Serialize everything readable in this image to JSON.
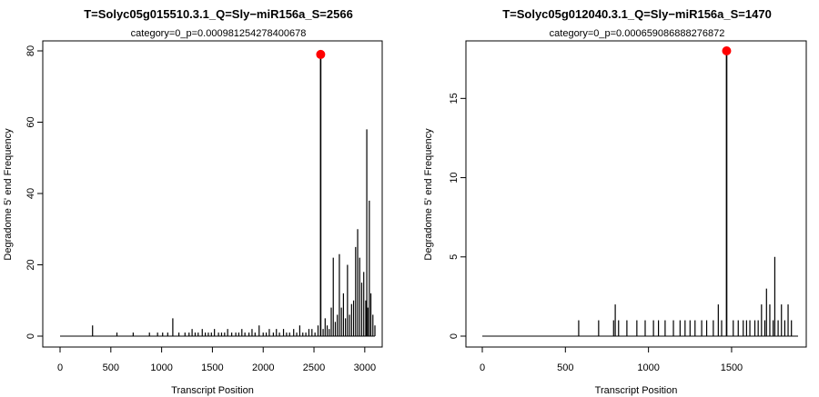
{
  "chart_data": [
    {
      "type": "bar",
      "title": "T=Solyc05g015510.3.1_Q=Sly−miR156a_S=2566",
      "subtitle": "category=0_p=0.000981254278400678",
      "xlabel": "Transcript Position",
      "ylabel": "Degradome 5' end Frequency",
      "xlim": [
        0,
        3100
      ],
      "ylim": [
        0,
        80
      ],
      "xticks": [
        "0",
        "500",
        "1000",
        "1500",
        "2000",
        "2500",
        "3000"
      ],
      "yticks": [
        "0",
        "20",
        "40",
        "60",
        "80"
      ],
      "highlight": {
        "x": 2566,
        "y": 79,
        "color": "#ff0000"
      },
      "series": [
        {
          "x": [
            320,
            560,
            720,
            880,
            960,
            1010,
            1060,
            1110,
            1170,
            1230,
            1270,
            1300,
            1330,
            1360,
            1400,
            1430,
            1460,
            1490,
            1520,
            1560,
            1590,
            1620,
            1650,
            1690,
            1730,
            1760,
            1790,
            1820,
            1860,
            1890,
            1920,
            1960,
            2000,
            2030,
            2060,
            2100,
            2130,
            2160,
            2200,
            2230,
            2260,
            2300,
            2330,
            2360,
            2390,
            2420,
            2450,
            2480,
            2510,
            2540,
            2566,
            2590,
            2610,
            2630,
            2650,
            2670,
            2690,
            2710,
            2730,
            2750,
            2770,
            2790,
            2810,
            2830,
            2850,
            2870,
            2890,
            2910,
            2930,
            2950,
            2970,
            2990,
            3010,
            3020,
            3030,
            3045,
            3060,
            3080,
            3100
          ],
          "values": [
            3,
            1,
            1,
            1,
            1,
            1,
            1,
            5,
            1,
            1,
            1,
            2,
            1,
            1,
            2,
            1,
            1,
            1,
            2,
            1,
            1,
            1,
            2,
            1,
            1,
            1,
            2,
            1,
            1,
            2,
            1,
            3,
            1,
            1,
            2,
            1,
            2,
            1,
            2,
            1,
            1,
            2,
            1,
            3,
            1,
            1,
            2,
            2,
            1,
            3,
            79,
            2,
            5,
            3,
            2,
            8,
            22,
            4,
            6,
            23,
            8,
            12,
            5,
            20,
            6,
            9,
            10,
            25,
            30,
            22,
            15,
            18,
            10,
            58,
            8,
            38,
            12,
            6,
            3
          ]
        }
      ]
    },
    {
      "type": "bar",
      "title": "T=Solyc05g012040.3.1_Q=Sly−miR156a_S=1470",
      "subtitle": "category=0_p=0.000659086888276872",
      "xlabel": "Transcript Position",
      "ylabel": "Degradome 5' end Frequency",
      "xlim": [
        0,
        1900
      ],
      "ylim": [
        0,
        18
      ],
      "xticks": [
        "0",
        "500",
        "1000",
        "1500"
      ],
      "yticks": [
        "0",
        "5",
        "10",
        "15"
      ],
      "highlight": {
        "x": 1470,
        "y": 18,
        "color": "#ff0000"
      },
      "series": [
        {
          "x": [
            580,
            700,
            790,
            800,
            820,
            870,
            930,
            980,
            1030,
            1060,
            1100,
            1150,
            1190,
            1220,
            1250,
            1280,
            1320,
            1350,
            1390,
            1420,
            1440,
            1470,
            1510,
            1540,
            1570,
            1590,
            1610,
            1640,
            1660,
            1680,
            1700,
            1710,
            1730,
            1750,
            1760,
            1780,
            1800,
            1820,
            1840,
            1860
          ],
          "values": [
            1,
            1,
            1,
            2,
            1,
            1,
            1,
            1,
            1,
            1,
            1,
            1,
            1,
            1,
            1,
            1,
            1,
            1,
            1,
            2,
            1,
            18,
            1,
            1,
            1,
            1,
            1,
            1,
            1,
            2,
            1,
            3,
            2,
            1,
            5,
            1,
            2,
            1,
            2,
            1
          ]
        }
      ]
    }
  ]
}
